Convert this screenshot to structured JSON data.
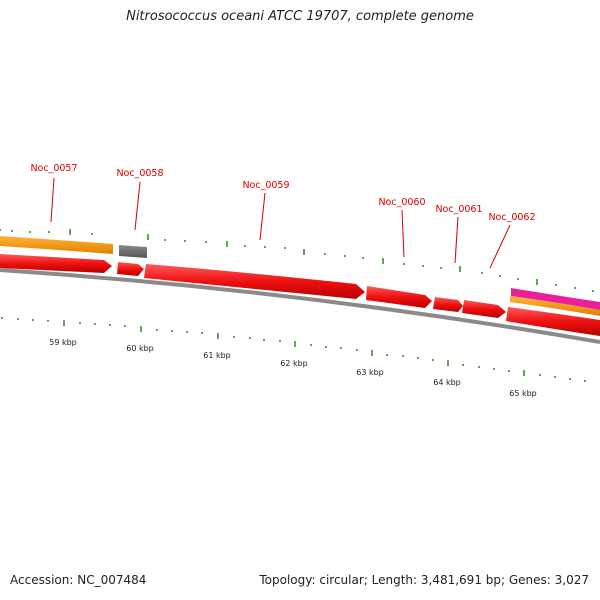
{
  "title": "Nitrosococcus oceani ATCC 19707, complete genome",
  "accession_text": "Accession: NC_007484",
  "meta_text": "Topology: circular; Length: 3,481,691 bp; Genes: 3,027",
  "colors": {
    "gene_red": "#ee1111",
    "gene_orange": "#f09000",
    "gene_gray": "#6a6a6a",
    "gene_magenta": "#ea1f9a",
    "backbone": "#8a8a8a",
    "tick_green": "#2e8a1a",
    "label_red": "#d40000"
  },
  "gene_labels": [
    "Noc_0057",
    "Noc_0058",
    "Noc_0059",
    "Noc_0060",
    "Noc_0061",
    "Noc_0062"
  ],
  "scale_labels": [
    "59 kbp",
    "60 kbp",
    "61 kbp",
    "62 kbp",
    "63 kbp",
    "64 kbp",
    "65 kbp"
  ]
}
